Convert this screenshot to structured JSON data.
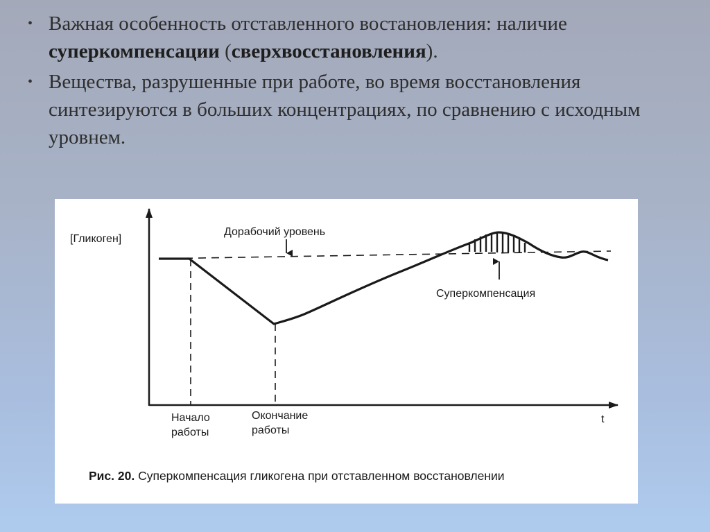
{
  "bullets": [
    {
      "text_before": "Важная особенность отставленного востановления: наличие ",
      "bold1": "суперкомпенсации",
      "middle": " (",
      "bold2": "сверхвосстановления",
      "text_after": ")."
    },
    {
      "text": "Вещества, разрушенные при работе, во время восстановления синтезируются в больших концентрациях, по сравнению с исходным уровнем."
    }
  ],
  "diagram": {
    "y_axis_label": "[Гликоген]",
    "x_axis_label": "t",
    "baseline_label": "Дорабочий уровень",
    "supercomp_label": "Суперкомпенсация",
    "start_label_line1": "Начало",
    "start_label_line2": "работы",
    "end_label_line1": "Окончание",
    "end_label_line2": "работы",
    "caption_prefix": "Рис. 20.",
    "caption_text": " Суперкомпенсация гликогена при отставленном восстановлении"
  }
}
